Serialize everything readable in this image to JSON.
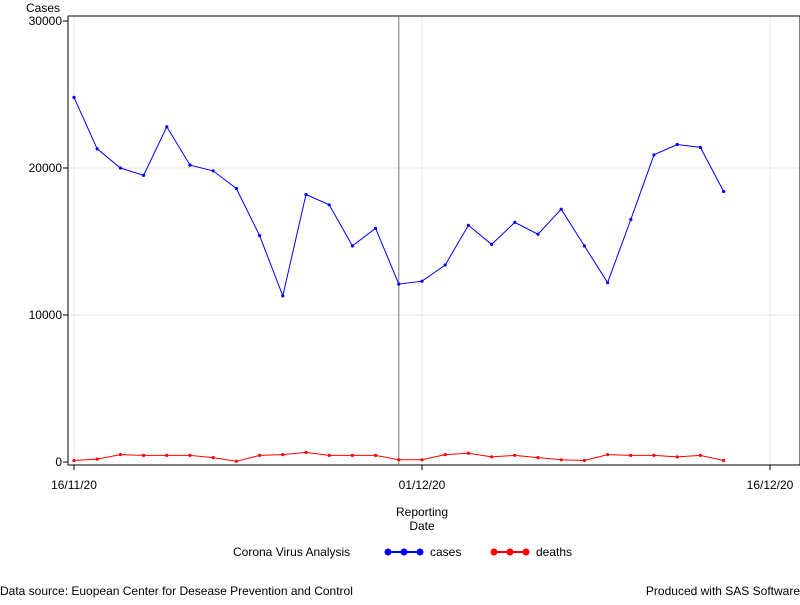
{
  "chart_data": {
    "type": "line",
    "ylabel": "Cases",
    "xlabel_line1": "Reporting",
    "xlabel_line2": "Date",
    "ylim": [
      0,
      30000
    ],
    "yticks": [
      0,
      10000,
      20000,
      30000
    ],
    "xticks": [
      "16/11/20",
      "01/12/20",
      "16/12/20"
    ],
    "reference_line_date": "30/11/20",
    "grid": true,
    "legend_title": "Corona Virus Analysis",
    "legend_position": "bottom",
    "x": [
      "16/11/20",
      "17/11/20",
      "18/11/20",
      "19/11/20",
      "20/11/20",
      "21/11/20",
      "22/11/20",
      "23/11/20",
      "24/11/20",
      "25/11/20",
      "26/11/20",
      "27/11/20",
      "28/11/20",
      "29/11/20",
      "30/11/20",
      "01/12/20",
      "02/12/20",
      "03/12/20",
      "04/12/20",
      "05/12/20",
      "06/12/20",
      "07/12/20",
      "08/12/20",
      "09/12/20",
      "10/12/20",
      "11/12/20",
      "12/12/20",
      "13/12/20",
      "14/12/20"
    ],
    "series": [
      {
        "name": "cases",
        "color": "#0000ff",
        "values": [
          24800,
          21300,
          20000,
          19500,
          22800,
          20200,
          19800,
          18600,
          15400,
          11300,
          18200,
          17500,
          14700,
          15900,
          12100,
          12300,
          13400,
          16100,
          14800,
          16300,
          15500,
          17200,
          14700,
          12200,
          16500,
          20900,
          21600,
          21400,
          18400
        ]
      },
      {
        "name": "deaths",
        "color": "#ff0000",
        "values": [
          100,
          200,
          500,
          450,
          450,
          450,
          300,
          50,
          450,
          500,
          650,
          450,
          450,
          450,
          150,
          150,
          500,
          600,
          350,
          450,
          300,
          150,
          100,
          500,
          450,
          450,
          350,
          450,
          100
        ]
      }
    ]
  },
  "footnotes": {
    "source": "Data source: Euopean Center for Desease Prevention and Control",
    "produced": "Produced with SAS Software"
  }
}
